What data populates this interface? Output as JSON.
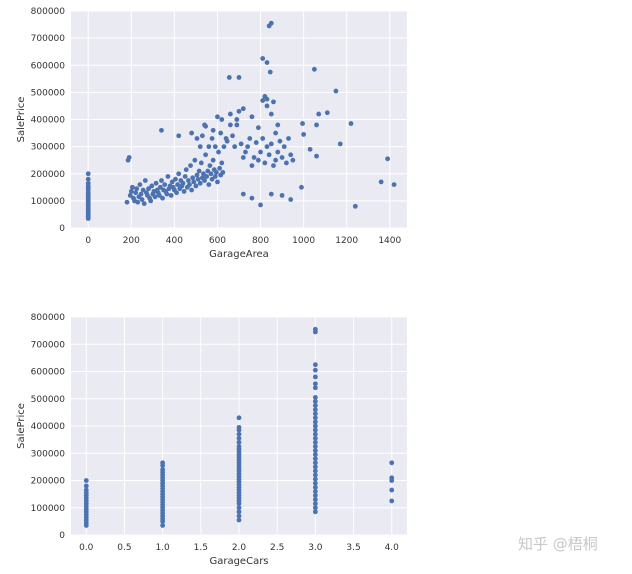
{
  "watermark": "知乎 @梧桐",
  "chart_data": [
    {
      "type": "scatter",
      "title": "",
      "xlabel": "GarageArea",
      "ylabel": "SalePrice",
      "xlim": [
        -80,
        1480
      ],
      "ylim": [
        0,
        800000
      ],
      "xticks": [
        0,
        200,
        400,
        600,
        800,
        1000,
        1200,
        1400
      ],
      "xtick_labels": [
        "0",
        "200",
        "400",
        "600",
        "800",
        "1000",
        "1200",
        "1400"
      ],
      "yticks": [
        0,
        100000,
        200000,
        300000,
        400000,
        500000,
        600000,
        700000,
        800000
      ],
      "ytick_labels": [
        "0",
        "100000",
        "200000",
        "300000",
        "400000",
        "500000",
        "600000",
        "700000",
        "800000"
      ],
      "grid": true,
      "marker_color": "#4c72b0",
      "points": [
        [
          0,
          35000
        ],
        [
          0,
          42000
        ],
        [
          0,
          50000
        ],
        [
          0,
          58000
        ],
        [
          0,
          65000
        ],
        [
          0,
          72000
        ],
        [
          0,
          80000
        ],
        [
          0,
          88000
        ],
        [
          0,
          95000
        ],
        [
          0,
          102000
        ],
        [
          0,
          110000
        ],
        [
          0,
          118000
        ],
        [
          0,
          125000
        ],
        [
          0,
          132000
        ],
        [
          0,
          140000
        ],
        [
          0,
          148000
        ],
        [
          0,
          155000
        ],
        [
          0,
          165000
        ],
        [
          0,
          180000
        ],
        [
          0,
          200000
        ],
        [
          180,
          95000
        ],
        [
          185,
          250000
        ],
        [
          190,
          260000
        ],
        [
          195,
          120000
        ],
        [
          200,
          135000
        ],
        [
          205,
          150000
        ],
        [
          210,
          110000
        ],
        [
          215,
          100000
        ],
        [
          220,
          130000
        ],
        [
          225,
          145000
        ],
        [
          230,
          95000
        ],
        [
          235,
          115000
        ],
        [
          240,
          160000
        ],
        [
          245,
          125000
        ],
        [
          250,
          105000
        ],
        [
          255,
          140000
        ],
        [
          260,
          90000
        ],
        [
          265,
          175000
        ],
        [
          270,
          130000
        ],
        [
          275,
          120000
        ],
        [
          280,
          145000
        ],
        [
          285,
          110000
        ],
        [
          290,
          100000
        ],
        [
          295,
          155000
        ],
        [
          300,
          125000
        ],
        [
          305,
          135000
        ],
        [
          310,
          115000
        ],
        [
          315,
          165000
        ],
        [
          320,
          140000
        ],
        [
          325,
          130000
        ],
        [
          330,
          120000
        ],
        [
          335,
          150000
        ],
        [
          340,
          175000
        ],
        [
          345,
          110000
        ],
        [
          350,
          140000
        ],
        [
          355,
          160000
        ],
        [
          360,
          135000
        ],
        [
          365,
          125000
        ],
        [
          370,
          190000
        ],
        [
          375,
          145000
        ],
        [
          380,
          155000
        ],
        [
          385,
          120000
        ],
        [
          390,
          170000
        ],
        [
          395,
          150000
        ],
        [
          400,
          140000
        ],
        [
          405,
          180000
        ],
        [
          410,
          130000
        ],
        [
          415,
          160000
        ],
        [
          420,
          200000
        ],
        [
          425,
          145000
        ],
        [
          430,
          175000
        ],
        [
          435,
          155000
        ],
        [
          440,
          165000
        ],
        [
          445,
          135000
        ],
        [
          450,
          190000
        ],
        [
          455,
          215000
        ],
        [
          460,
          150000
        ],
        [
          465,
          175000
        ],
        [
          470,
          160000
        ],
        [
          475,
          230000
        ],
        [
          480,
          140000
        ],
        [
          485,
          185000
        ],
        [
          490,
          170000
        ],
        [
          495,
          250000
        ],
        [
          500,
          155000
        ],
        [
          505,
          195000
        ],
        [
          510,
          180000
        ],
        [
          515,
          210000
        ],
        [
          520,
          165000
        ],
        [
          525,
          240000
        ],
        [
          530,
          185000
        ],
        [
          535,
          200000
        ],
        [
          540,
          175000
        ],
        [
          545,
          270000
        ],
        [
          550,
          190000
        ],
        [
          555,
          210000
        ],
        [
          560,
          160000
        ],
        [
          565,
          230000
        ],
        [
          570,
          200000
        ],
        [
          575,
          180000
        ],
        [
          580,
          250000
        ],
        [
          585,
          215000
        ],
        [
          590,
          190000
        ],
        [
          595,
          205000
        ],
        [
          600,
          170000
        ],
        [
          605,
          280000
        ],
        [
          610,
          220000
        ],
        [
          615,
          195000
        ],
        [
          620,
          240000
        ],
        [
          625,
          205000
        ],
        [
          520,
          300000
        ],
        [
          530,
          340000
        ],
        [
          545,
          375000
        ],
        [
          560,
          300000
        ],
        [
          575,
          330000
        ],
        [
          590,
          300000
        ],
        [
          600,
          410000
        ],
        [
          615,
          350000
        ],
        [
          630,
          300000
        ],
        [
          645,
          320000
        ],
        [
          660,
          380000
        ],
        [
          670,
          340000
        ],
        [
          680,
          300000
        ],
        [
          690,
          380000
        ],
        [
          700,
          430000
        ],
        [
          710,
          310000
        ],
        [
          720,
          260000
        ],
        [
          730,
          280000
        ],
        [
          740,
          300000
        ],
        [
          750,
          330000
        ],
        [
          760,
          230000
        ],
        [
          770,
          260000
        ],
        [
          780,
          315000
        ],
        [
          790,
          250000
        ],
        [
          800,
          280000
        ],
        [
          810,
          330000
        ],
        [
          820,
          240000
        ],
        [
          830,
          300000
        ],
        [
          840,
          270000
        ],
        [
          850,
          310000
        ],
        [
          860,
          230000
        ],
        [
          870,
          250000
        ],
        [
          880,
          280000
        ],
        [
          890,
          320000
        ],
        [
          900,
          260000
        ],
        [
          910,
          300000
        ],
        [
          920,
          240000
        ],
        [
          930,
          330000
        ],
        [
          940,
          270000
        ],
        [
          950,
          250000
        ],
        [
          340,
          360000
        ],
        [
          420,
          340000
        ],
        [
          480,
          350000
        ],
        [
          505,
          330000
        ],
        [
          540,
          380000
        ],
        [
          580,
          360000
        ],
        [
          620,
          400000
        ],
        [
          640,
          330000
        ],
        [
          660,
          420000
        ],
        [
          690,
          400000
        ],
        [
          720,
          440000
        ],
        [
          760,
          410000
        ],
        [
          790,
          370000
        ],
        [
          810,
          470000
        ],
        [
          830,
          450000
        ],
        [
          850,
          420000
        ],
        [
          870,
          350000
        ],
        [
          880,
          380000
        ],
        [
          655,
          555000
        ],
        [
          700,
          555000
        ],
        [
          820,
          485000
        ],
        [
          830,
          475000
        ],
        [
          860,
          465000
        ],
        [
          810,
          625000
        ],
        [
          830,
          610000
        ],
        [
          840,
          745000
        ],
        [
          850,
          755000
        ],
        [
          845,
          575000
        ],
        [
          995,
          385000
        ],
        [
          1050,
          585000
        ],
        [
          1030,
          290000
        ],
        [
          1060,
          265000
        ],
        [
          1110,
          425000
        ],
        [
          1150,
          505000
        ],
        [
          1170,
          310000
        ],
        [
          1220,
          385000
        ],
        [
          1240,
          80000
        ],
        [
          1360,
          170000
        ],
        [
          1390,
          255000
        ],
        [
          1420,
          160000
        ],
        [
          1000,
          345000
        ],
        [
          1060,
          380000
        ],
        [
          1070,
          420000
        ],
        [
          720,
          125000
        ],
        [
          760,
          110000
        ],
        [
          800,
          85000
        ],
        [
          850,
          125000
        ],
        [
          900,
          120000
        ],
        [
          940,
          105000
        ],
        [
          990,
          150000
        ]
      ]
    },
    {
      "type": "scatter",
      "title": "",
      "xlabel": "GarageCars",
      "ylabel": "SalePrice",
      "xlim": [
        -0.2,
        4.2
      ],
      "ylim": [
        0,
        800000
      ],
      "xticks": [
        0,
        0.5,
        1,
        1.5,
        2,
        2.5,
        3,
        3.5,
        4
      ],
      "xtick_labels": [
        "0.0",
        "0.5",
        "1.0",
        "1.5",
        "2.0",
        "2.5",
        "3.0",
        "3.5",
        "4.0"
      ],
      "yticks": [
        0,
        100000,
        200000,
        300000,
        400000,
        500000,
        600000,
        700000,
        800000
      ],
      "ytick_labels": [
        "0",
        "100000",
        "200000",
        "300000",
        "400000",
        "500000",
        "600000",
        "700000",
        "800000"
      ],
      "grid": true,
      "marker_color": "#4c72b0",
      "points": [
        [
          0,
          35000
        ],
        [
          0,
          45000
        ],
        [
          0,
          55000
        ],
        [
          0,
          65000
        ],
        [
          0,
          75000
        ],
        [
          0,
          85000
        ],
        [
          0,
          95000
        ],
        [
          0,
          105000
        ],
        [
          0,
          115000
        ],
        [
          0,
          125000
        ],
        [
          0,
          135000
        ],
        [
          0,
          145000
        ],
        [
          0,
          155000
        ],
        [
          0,
          165000
        ],
        [
          0,
          180000
        ],
        [
          0,
          200000
        ],
        [
          1,
          35000
        ],
        [
          1,
          50000
        ],
        [
          1,
          60000
        ],
        [
          1,
          70000
        ],
        [
          1,
          80000
        ],
        [
          1,
          90000
        ],
        [
          1,
          100000
        ],
        [
          1,
          110000
        ],
        [
          1,
          120000
        ],
        [
          1,
          130000
        ],
        [
          1,
          140000
        ],
        [
          1,
          150000
        ],
        [
          1,
          160000
        ],
        [
          1,
          170000
        ],
        [
          1,
          180000
        ],
        [
          1,
          190000
        ],
        [
          1,
          200000
        ],
        [
          1,
          210000
        ],
        [
          1,
          220000
        ],
        [
          1,
          230000
        ],
        [
          1,
          240000
        ],
        [
          1,
          255000
        ],
        [
          1,
          265000
        ],
        [
          2,
          55000
        ],
        [
          2,
          70000
        ],
        [
          2,
          85000
        ],
        [
          2,
          100000
        ],
        [
          2,
          115000
        ],
        [
          2,
          125000
        ],
        [
          2,
          135000
        ],
        [
          2,
          145000
        ],
        [
          2,
          155000
        ],
        [
          2,
          165000
        ],
        [
          2,
          175000
        ],
        [
          2,
          185000
        ],
        [
          2,
          195000
        ],
        [
          2,
          205000
        ],
        [
          2,
          215000
        ],
        [
          2,
          225000
        ],
        [
          2,
          235000
        ],
        [
          2,
          245000
        ],
        [
          2,
          255000
        ],
        [
          2,
          265000
        ],
        [
          2,
          275000
        ],
        [
          2,
          285000
        ],
        [
          2,
          295000
        ],
        [
          2,
          305000
        ],
        [
          2,
          315000
        ],
        [
          2,
          325000
        ],
        [
          2,
          340000
        ],
        [
          2,
          355000
        ],
        [
          2,
          370000
        ],
        [
          2,
          385000
        ],
        [
          2,
          395000
        ],
        [
          2,
          430000
        ],
        [
          3,
          85000
        ],
        [
          3,
          100000
        ],
        [
          3,
          115000
        ],
        [
          3,
          130000
        ],
        [
          3,
          145000
        ],
        [
          3,
          160000
        ],
        [
          3,
          175000
        ],
        [
          3,
          190000
        ],
        [
          3,
          205000
        ],
        [
          3,
          220000
        ],
        [
          3,
          235000
        ],
        [
          3,
          250000
        ],
        [
          3,
          265000
        ],
        [
          3,
          280000
        ],
        [
          3,
          295000
        ],
        [
          3,
          310000
        ],
        [
          3,
          325000
        ],
        [
          3,
          340000
        ],
        [
          3,
          355000
        ],
        [
          3,
          370000
        ],
        [
          3,
          385000
        ],
        [
          3,
          400000
        ],
        [
          3,
          415000
        ],
        [
          3,
          430000
        ],
        [
          3,
          445000
        ],
        [
          3,
          460000
        ],
        [
          3,
          475000
        ],
        [
          3,
          490000
        ],
        [
          3,
          505000
        ],
        [
          3,
          540000
        ],
        [
          3,
          555000
        ],
        [
          3,
          580000
        ],
        [
          3,
          605000
        ],
        [
          3,
          625000
        ],
        [
          3,
          745000
        ],
        [
          3,
          755000
        ],
        [
          4,
          125000
        ],
        [
          4,
          165000
        ],
        [
          4,
          200000
        ],
        [
          4,
          210000
        ],
        [
          4,
          265000
        ]
      ]
    }
  ]
}
